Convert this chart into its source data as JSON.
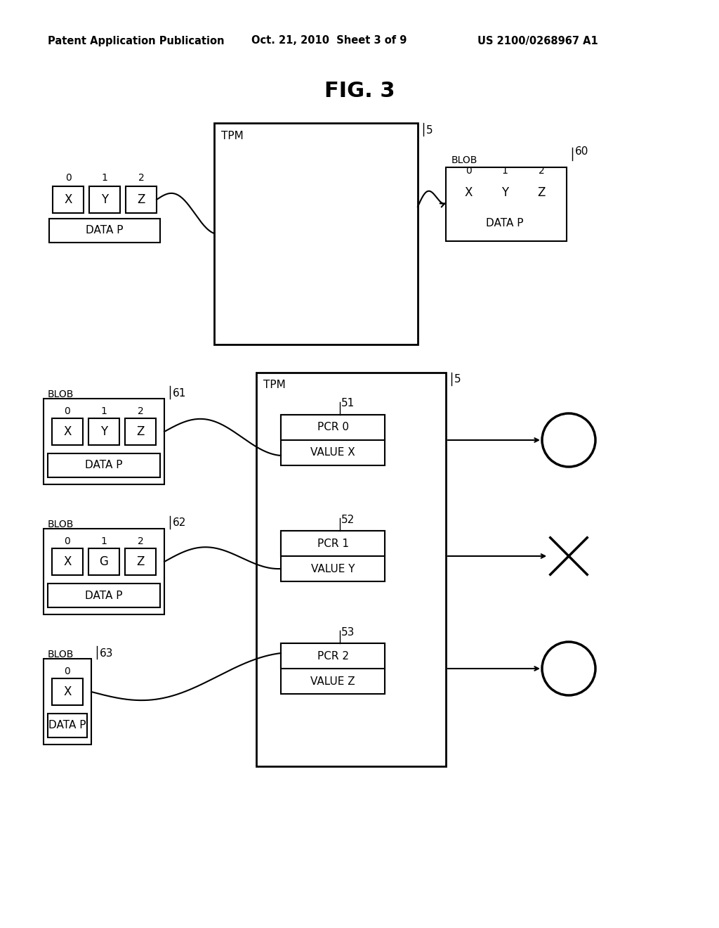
{
  "title": "FIG. 3",
  "header_left": "Patent Application Publication",
  "header_mid": "Oct. 21, 2010  Sheet 3 of 9",
  "header_right": "US 2100/0268967 A1",
  "bg_color": "#ffffff",
  "line_color": "#000000",
  "font_color": "#000000"
}
